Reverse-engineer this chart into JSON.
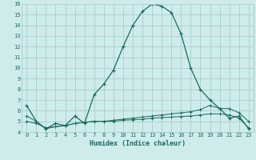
{
  "xlabel": "Humidex (Indice chaleur)",
  "background_color": "#ceecea",
  "grid_color": "#aad4d0",
  "line_color": "#1a6b5e",
  "x_values": [
    0,
    1,
    2,
    3,
    4,
    5,
    6,
    7,
    8,
    9,
    10,
    11,
    12,
    13,
    14,
    15,
    16,
    17,
    18,
    19,
    20,
    21,
    22,
    23
  ],
  "series1": [
    6.5,
    5.0,
    4.3,
    4.8,
    4.6,
    5.5,
    4.8,
    7.5,
    8.5,
    9.8,
    12.0,
    14.0,
    15.3,
    16.0,
    15.8,
    15.2,
    13.2,
    10.0,
    8.0,
    7.0,
    6.2,
    5.3,
    5.5,
    4.3
  ],
  "series2": [
    5.0,
    4.8,
    4.4,
    4.5,
    4.6,
    4.8,
    4.9,
    5.0,
    5.0,
    5.1,
    5.2,
    5.3,
    5.4,
    5.5,
    5.6,
    5.7,
    5.8,
    5.9,
    6.1,
    6.5,
    6.2,
    6.2,
    5.8,
    5.0
  ],
  "series3": [
    5.5,
    5.0,
    4.3,
    4.5,
    4.6,
    4.8,
    4.9,
    5.0,
    5.0,
    5.0,
    5.1,
    5.15,
    5.2,
    5.3,
    5.35,
    5.4,
    5.45,
    5.5,
    5.6,
    5.7,
    5.7,
    5.6,
    5.3,
    4.4
  ],
  "ylim": [
    4,
    16
  ],
  "xlim_min": -0.5,
  "xlim_max": 23.5,
  "yticks": [
    4,
    5,
    6,
    7,
    8,
    9,
    10,
    11,
    12,
    13,
    14,
    15,
    16
  ],
  "xtick_labels": [
    "0",
    "1",
    "2",
    "3",
    "4",
    "5",
    "6",
    "7",
    "8",
    "9",
    "10",
    "11",
    "12",
    "13",
    "14",
    "15",
    "16",
    "17",
    "18",
    "19",
    "20",
    "21",
    "22",
    "23"
  ],
  "tick_fontsize": 5,
  "xlabel_fontsize": 6
}
